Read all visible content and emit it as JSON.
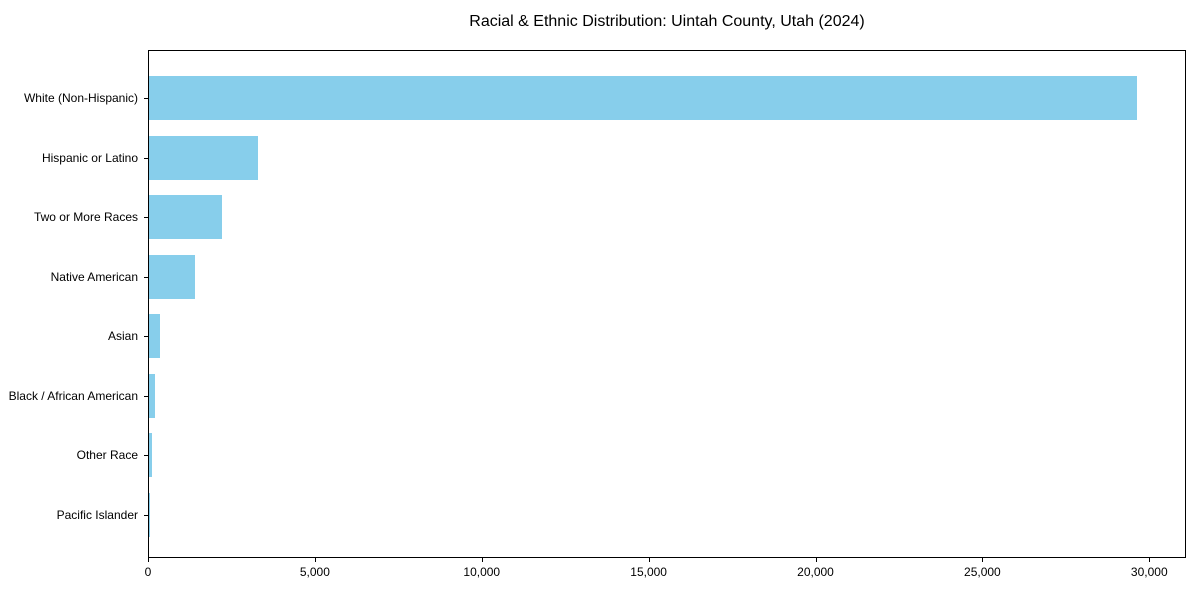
{
  "chart_data": {
    "type": "bar",
    "orientation": "horizontal",
    "title": "Racial & Ethnic Distribution: Uintah County, Utah (2024)",
    "categories": [
      "White (Non-Hispanic)",
      "Hispanic or Latino",
      "Two or More Races",
      "Native American",
      "Asian",
      "Black / African American",
      "Other Race",
      "Pacific Islander"
    ],
    "values": [
      29600,
      3260,
      2180,
      1380,
      330,
      180,
      90,
      30
    ],
    "xlabel": "",
    "ylabel": "",
    "xlim": [
      0,
      31100
    ],
    "x_ticks": [
      0,
      5000,
      10000,
      15000,
      20000,
      25000,
      30000
    ],
    "x_tick_labels": [
      "0",
      "5,000",
      "10,000",
      "15,000",
      "20,000",
      "25,000",
      "30,000"
    ],
    "bar_color": "#87CEEB",
    "text_color": "#000000",
    "spine_color": "#000000",
    "grid": false,
    "legend": null
  }
}
